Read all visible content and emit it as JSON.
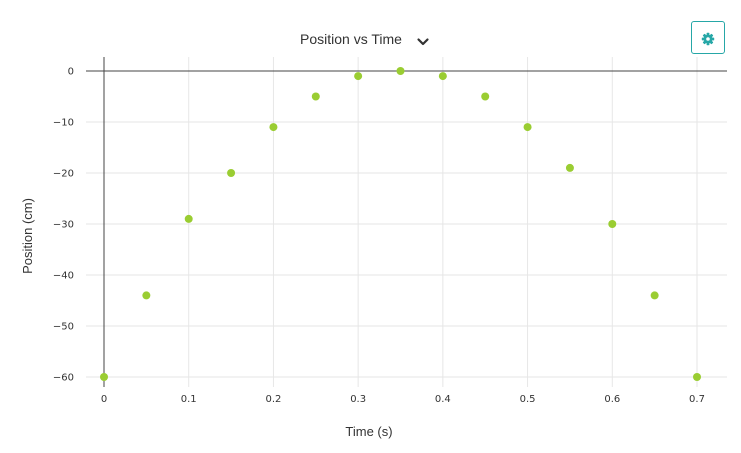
{
  "header": {
    "title": "Position vs Time",
    "dropdown_icon": "chevron-down-icon",
    "settings_icon": "gear-icon"
  },
  "colors": {
    "accent": "#26a7a7",
    "point": "#9acd32",
    "grid": "#e6e6e6",
    "axis": "#444444"
  },
  "chart_data": {
    "type": "scatter",
    "title": "Position vs Time",
    "xlabel": "Time (s)",
    "ylabel": "Position (cm)",
    "xlim": [
      0,
      0.7
    ],
    "ylim": [
      -60,
      0
    ],
    "x_ticks": [
      0,
      0.1,
      0.2,
      0.3,
      0.4,
      0.5,
      0.6,
      0.7
    ],
    "x_tick_labels": [
      "0",
      "0.1",
      "0.2",
      "0.3",
      "0.4",
      "0.5",
      "0.6",
      "0.7"
    ],
    "y_ticks": [
      0,
      -10,
      -20,
      -30,
      -40,
      -50,
      -60
    ],
    "y_tick_labels": [
      "0",
      "−10",
      "−20",
      "−30",
      "−40",
      "−50",
      "−60"
    ],
    "grid": true,
    "series": [
      {
        "x": [
          0,
          0.05,
          0.1,
          0.15,
          0.2,
          0.25,
          0.3,
          0.35,
          0.4,
          0.45,
          0.5,
          0.55,
          0.6,
          0.65,
          0.7
        ],
        "y": [
          -60,
          -44,
          -29,
          -20,
          -11,
          -5,
          -1,
          0,
          -1,
          -5,
          -11,
          -19,
          -30,
          -44,
          -60
        ]
      }
    ]
  }
}
